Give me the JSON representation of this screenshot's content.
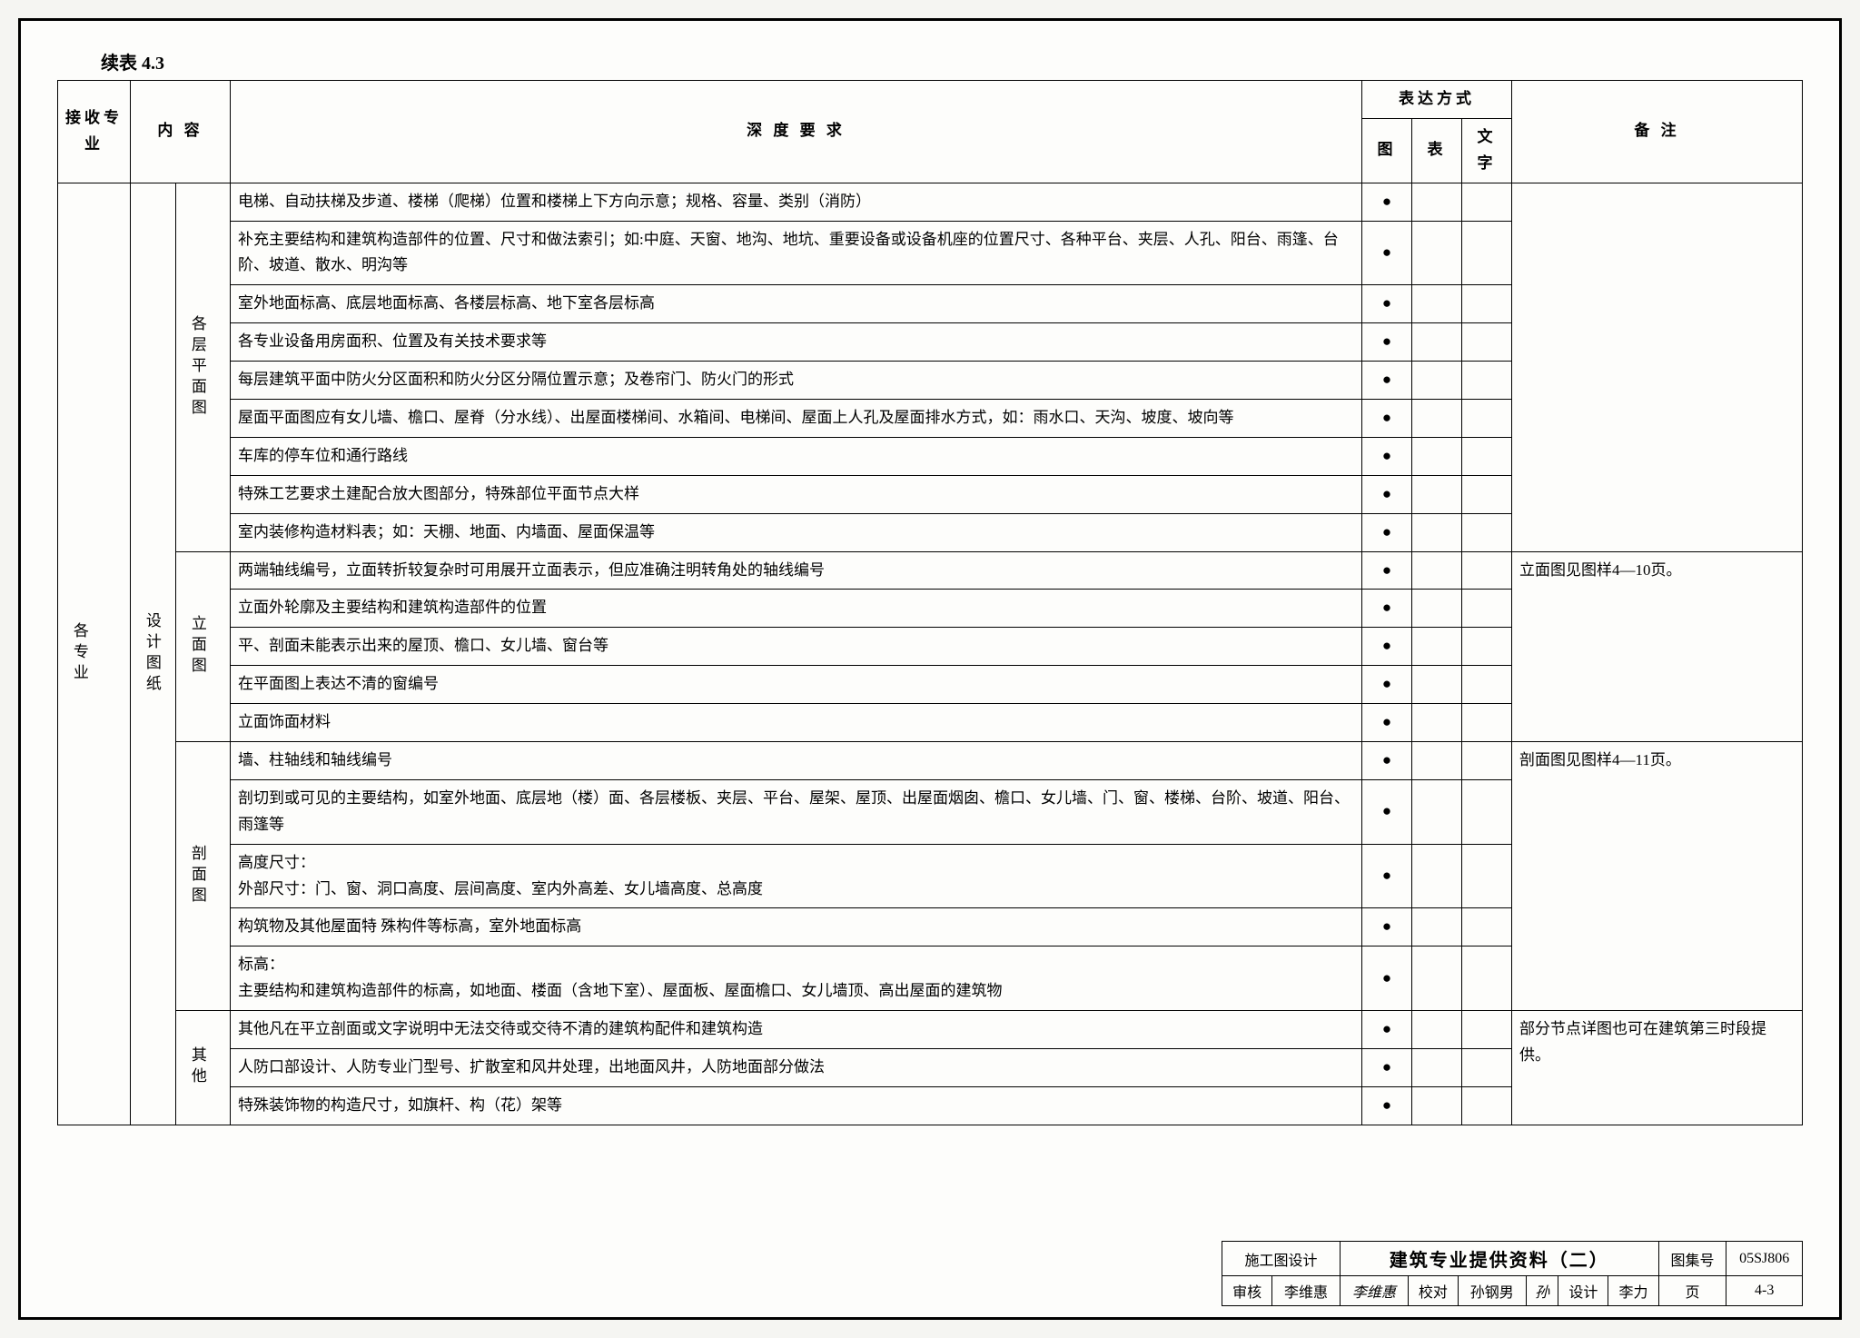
{
  "caption": "续表 4.3",
  "headers": {
    "col1": "接收专业",
    "col2": "内 容",
    "col3": "深 度 要 求",
    "expr_group": "表达方式",
    "expr_tu": "图",
    "expr_biao": "表",
    "expr_wenzi": "文字",
    "remark": "备    注"
  },
  "col1_label": "各专业",
  "col2_label": "设计图纸",
  "groups": [
    {
      "label": "各层平面图",
      "remark": "",
      "rows": [
        {
          "req": "电梯、自动扶梯及步道、楼梯（爬梯）位置和楼梯上下方向示意；规格、容量、类别（消防）",
          "tu": "●",
          "biao": "",
          "wz": ""
        },
        {
          "req": "补充主要结构和建筑构造部件的位置、尺寸和做法索引；如:中庭、天窗、地沟、地坑、重要设备或设备机座的位置尺寸、各种平台、夹层、人孔、阳台、雨篷、台阶、坡道、散水、明沟等",
          "tu": "●",
          "biao": "",
          "wz": ""
        },
        {
          "req": "室外地面标高、底层地面标高、各楼层标高、地下室各层标高",
          "tu": "●",
          "biao": "",
          "wz": ""
        },
        {
          "req": "各专业设备用房面积、位置及有关技术要求等",
          "tu": "●",
          "biao": "",
          "wz": ""
        },
        {
          "req": "每层建筑平面中防火分区面积和防火分区分隔位置示意；及卷帘门、防火门的形式",
          "tu": "●",
          "biao": "",
          "wz": ""
        },
        {
          "req": "屋面平面图应有女儿墙、檐口、屋脊（分水线）、出屋面楼梯间、水箱间、电梯间、屋面上人孔及屋面排水方式，如：雨水口、天沟、坡度、坡向等",
          "tu": "●",
          "biao": "",
          "wz": ""
        },
        {
          "req": "车库的停车位和通行路线",
          "tu": "●",
          "biao": "",
          "wz": ""
        },
        {
          "req": "特殊工艺要求土建配合放大图部分，特殊部位平面节点大样",
          "tu": "●",
          "biao": "",
          "wz": ""
        },
        {
          "req": "室内装修构造材料表；如：天棚、地面、内墙面、屋面保温等",
          "tu": "●",
          "biao": "",
          "wz": ""
        }
      ]
    },
    {
      "label": "立面图",
      "remark": "立面图见图样4—10页。",
      "rows": [
        {
          "req": "两端轴线编号，立面转折较复杂时可用展开立面表示，但应准确注明转角处的轴线编号",
          "tu": "●",
          "biao": "",
          "wz": ""
        },
        {
          "req": "立面外轮廓及主要结构和建筑构造部件的位置",
          "tu": "●",
          "biao": "",
          "wz": ""
        },
        {
          "req": "平、剖面未能表示出来的屋顶、檐口、女儿墙、窗台等",
          "tu": "●",
          "biao": "",
          "wz": ""
        },
        {
          "req": "在平面图上表达不清的窗编号",
          "tu": "●",
          "biao": "",
          "wz": ""
        },
        {
          "req": "立面饰面材料",
          "tu": "●",
          "biao": "",
          "wz": ""
        }
      ]
    },
    {
      "label": "剖面图",
      "remark": "剖面图见图样4—11页。",
      "rows": [
        {
          "req": "墙、柱轴线和轴线编号",
          "tu": "●",
          "biao": "",
          "wz": ""
        },
        {
          "req": "剖切到或可见的主要结构，如室外地面、底层地（楼）面、各层楼板、夹层、平台、屋架、屋顶、出屋面烟囱、檐口、女儿墙、门、窗、楼梯、台阶、坡道、阳台、雨篷等",
          "tu": "●",
          "biao": "",
          "wz": ""
        },
        {
          "req": "高度尺寸：\n外部尺寸：门、窗、洞口高度、层间高度、室内外高差、女儿墙高度、总高度",
          "tu": "●",
          "biao": "",
          "wz": ""
        },
        {
          "req": "构筑物及其他屋面特 殊构件等标高，室外地面标高",
          "tu": "●",
          "biao": "",
          "wz": ""
        },
        {
          "req": "标高：\n主要结构和建筑构造部件的标高，如地面、楼面（含地下室）、屋面板、屋面檐口、女儿墙顶、高出屋面的建筑物",
          "tu": "●",
          "biao": "",
          "wz": ""
        }
      ]
    },
    {
      "label": "其他",
      "remark": "部分节点详图也可在建筑第三时段提供。",
      "rows": [
        {
          "req": "其他凡在平立剖面或文字说明中无法交待或交待不清的建筑构配件和建筑构造",
          "tu": "●",
          "biao": "",
          "wz": ""
        },
        {
          "req": "人防口部设计、人防专业门型号、扩散室和风井处理，出地面风井，人防地面部分做法",
          "tu": "●",
          "biao": "",
          "wz": ""
        },
        {
          "req": "特殊装饰物的构造尺寸，如旗杆、构（花）架等",
          "tu": "●",
          "biao": "",
          "wz": ""
        }
      ]
    }
  ],
  "footer": {
    "stage": "施工图设计",
    "title": "建筑专业提供资料（二）",
    "tuji_label": "图集号",
    "tuji_val": "05SJ806",
    "shenhe_label": "审核",
    "shenhe_name": "李维惠",
    "shenhe_sig": "李维惠",
    "jiaodui_label": "校对",
    "jiaodui_name": "孙钢男",
    "jiaodui_sig": "孙",
    "sheji_label": "设计",
    "sheji_name": "李力",
    "sheji_sig": "李力",
    "page_label": "页",
    "page_val": "4-3"
  }
}
